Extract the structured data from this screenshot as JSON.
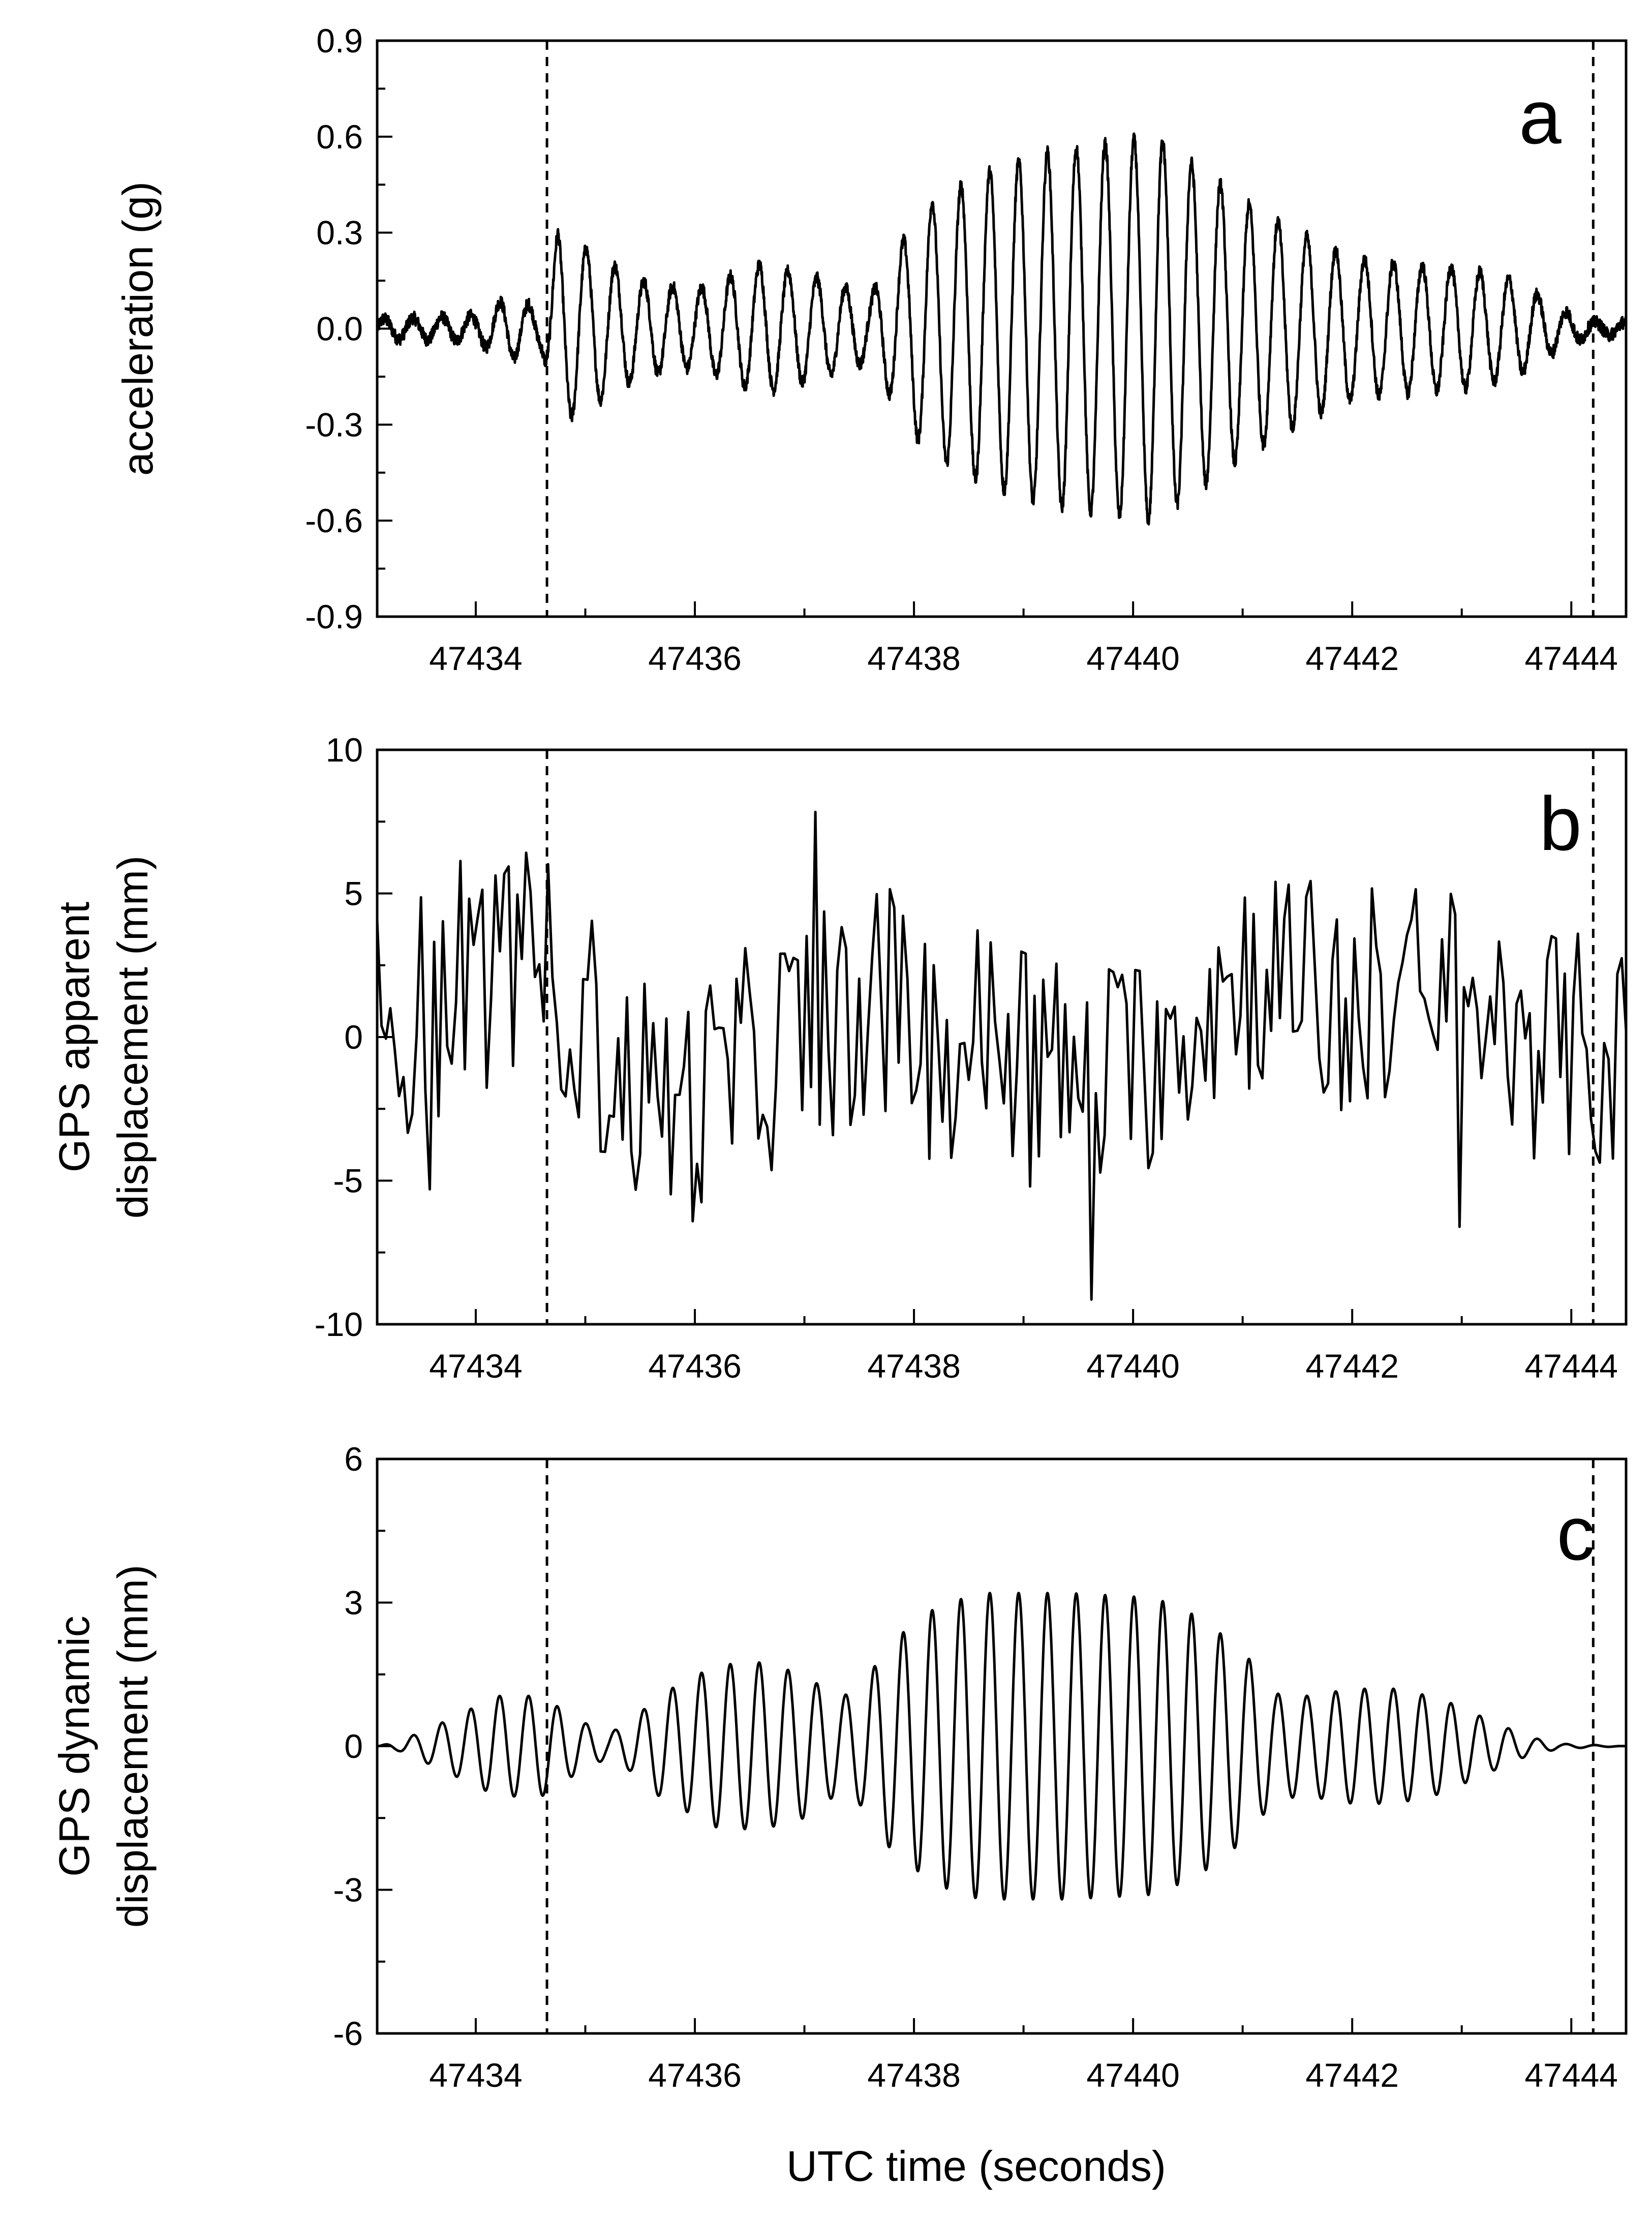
{
  "chart_data": [
    {
      "type": "line",
      "panel": "a",
      "ylabel": "acceleration (g)",
      "xlabel": "",
      "xlim": [
        47433.1,
        47444.5
      ],
      "ylim": [
        -0.9,
        0.9
      ],
      "yticks": [
        "0.9",
        "0.6",
        "0.3",
        "0.0",
        "-0.3",
        "-0.6",
        "-0.9"
      ],
      "ytick_values": [
        0.9,
        0.6,
        0.3,
        0.0,
        -0.3,
        -0.6,
        -0.9
      ],
      "xticks": [
        "47434",
        "47436",
        "47438",
        "47440",
        "47442",
        "47444"
      ],
      "xtick_values": [
        47434,
        47436,
        47438,
        47440,
        47442,
        47444
      ],
      "event_lines": [
        47434.65,
        47444.2
      ],
      "series": [
        {
          "name": "acceleration",
          "kind": "modulated",
          "frequency_hz": 3.8,
          "noise": 0.04,
          "envelope": [
            [
              47433.1,
              0.03
            ],
            [
              47434.0,
              0.04
            ],
            [
              47434.3,
              0.1
            ],
            [
              47434.6,
              0.06
            ],
            [
              47434.75,
              0.3
            ],
            [
              47435.0,
              0.25
            ],
            [
              47435.5,
              0.15
            ],
            [
              47436.0,
              0.12
            ],
            [
              47436.6,
              0.2
            ],
            [
              47437.2,
              0.15
            ],
            [
              47437.6,
              0.1
            ],
            [
              47437.8,
              0.22
            ],
            [
              47438.1,
              0.38
            ],
            [
              47438.6,
              0.48
            ],
            [
              47439.2,
              0.55
            ],
            [
              47439.8,
              0.58
            ],
            [
              47440.2,
              0.6
            ],
            [
              47440.6,
              0.5
            ],
            [
              47441.0,
              0.4
            ],
            [
              47441.5,
              0.3
            ],
            [
              47442.0,
              0.22
            ],
            [
              47442.5,
              0.2
            ],
            [
              47443.0,
              0.19
            ],
            [
              47443.5,
              0.15
            ],
            [
              47443.9,
              0.06
            ],
            [
              47444.2,
              0.02
            ],
            [
              47444.5,
              0.02
            ]
          ]
        }
      ]
    },
    {
      "type": "line",
      "panel": "b",
      "ylabel_lines": [
        "GPS apparent",
        "displacement (mm)"
      ],
      "xlabel": "",
      "xlim": [
        47433.1,
        47444.5
      ],
      "ylim": [
        -10,
        10
      ],
      "yticks": [
        "10",
        "5",
        "0",
        "-5",
        "-10"
      ],
      "ytick_values": [
        10,
        5,
        0,
        -5,
        -10
      ],
      "xticks": [
        "47434",
        "47436",
        "47438",
        "47440",
        "47442",
        "47444"
      ],
      "xtick_values": [
        47434,
        47436,
        47438,
        47440,
        47442,
        47444
      ],
      "event_lines": [
        47434.65,
        47444.2
      ],
      "series": [
        {
          "name": "GPS apparent displacement",
          "kind": "noisy",
          "sample_rate_hz": 25,
          "baseline": [
            [
              47433.1,
              0.5
            ],
            [
              47433.6,
              1.0
            ],
            [
              47434.2,
              2.5
            ],
            [
              47434.8,
              2.0
            ],
            [
              47435.3,
              -1.5
            ],
            [
              47435.9,
              -2.5
            ],
            [
              47436.5,
              -1.0
            ],
            [
              47437.1,
              0.5
            ],
            [
              47437.7,
              1.0
            ],
            [
              47438.3,
              -0.5
            ],
            [
              47438.9,
              0.5
            ],
            [
              47439.5,
              -2.0
            ],
            [
              47440.0,
              -1.0
            ],
            [
              47440.6,
              1.0
            ],
            [
              47441.2,
              2.5
            ],
            [
              47441.8,
              1.0
            ],
            [
              47442.4,
              1.5
            ],
            [
              47443.0,
              1.0
            ],
            [
              47443.6,
              0.0
            ],
            [
              47444.5,
              -1.0
            ]
          ],
          "noise_amplitude": 4.2
        }
      ]
    },
    {
      "type": "line",
      "panel": "c",
      "ylabel_lines": [
        "GPS dynamic",
        "displacement (mm)"
      ],
      "xlabel": "UTC time (seconds)",
      "xlim": [
        47433.1,
        47444.5
      ],
      "ylim": [
        -6,
        6
      ],
      "yticks": [
        "6",
        "3",
        "0",
        "-3",
        "-6"
      ],
      "ytick_values": [
        6,
        3,
        0,
        -3,
        -6
      ],
      "xticks": [
        "47434",
        "47436",
        "47438",
        "47440",
        "47442",
        "47444"
      ],
      "xtick_values": [
        47434,
        47436,
        47438,
        47440,
        47442,
        47444
      ],
      "event_lines": [
        47434.65,
        47444.2
      ],
      "series": [
        {
          "name": "GPS dynamic displacement",
          "kind": "modulated",
          "frequency_hz": 3.8,
          "noise": 0.0,
          "envelope": [
            [
              47433.1,
              0.0
            ],
            [
              47433.3,
              0.1
            ],
            [
              47433.7,
              0.5
            ],
            [
              47434.2,
              1.05
            ],
            [
              47434.6,
              1.05
            ],
            [
              47434.9,
              0.6
            ],
            [
              47435.2,
              0.25
            ],
            [
              47435.4,
              0.5
            ],
            [
              47435.7,
              1.1
            ],
            [
              47436.2,
              1.7
            ],
            [
              47436.6,
              1.75
            ],
            [
              47437.0,
              1.5
            ],
            [
              47437.3,
              1.0
            ],
            [
              47437.5,
              1.2
            ],
            [
              47437.8,
              2.2
            ],
            [
              47438.2,
              2.9
            ],
            [
              47438.6,
              3.2
            ],
            [
              47439.4,
              3.2
            ],
            [
              47440.2,
              3.1
            ],
            [
              47440.6,
              2.7
            ],
            [
              47441.0,
              2.0
            ],
            [
              47441.3,
              1.1
            ],
            [
              47441.6,
              1.05
            ],
            [
              47442.0,
              1.2
            ],
            [
              47442.4,
              1.2
            ],
            [
              47442.8,
              1.0
            ],
            [
              47443.2,
              0.6
            ],
            [
              47443.6,
              0.2
            ],
            [
              47443.9,
              0.05
            ],
            [
              47444.5,
              0.0
            ]
          ]
        }
      ]
    }
  ],
  "panel_letters": [
    "a",
    "b",
    "c"
  ]
}
